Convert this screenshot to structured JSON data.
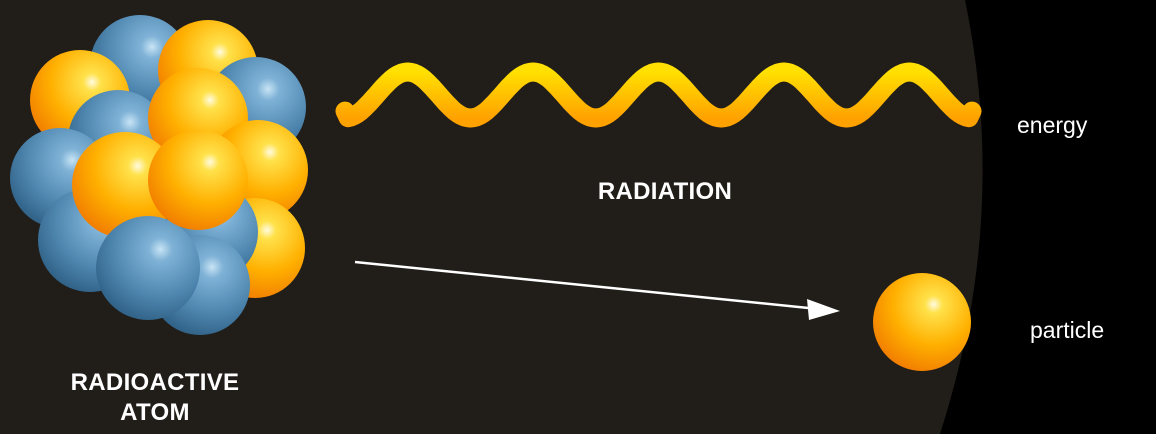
{
  "labels": {
    "atom_line1": "RADIOACTIVE",
    "atom_line2": "ATOM",
    "radiation": "RADIATION",
    "energy": "energy",
    "particle": "particle"
  },
  "colors": {
    "background": "#000000",
    "panel": "#211d19",
    "proton": "#ffb000",
    "neutron": "#4f87b0",
    "wave": "#ffb800",
    "arrow": "#ffffff",
    "text": "#ffffff"
  },
  "nucleus": {
    "ball_order": [
      "orange",
      "blue",
      "orange",
      "blue",
      "blue",
      "orange",
      "orange",
      "blue",
      "orange",
      "blue",
      "blue",
      "orange",
      "blue",
      "orange",
      "blue"
    ]
  }
}
